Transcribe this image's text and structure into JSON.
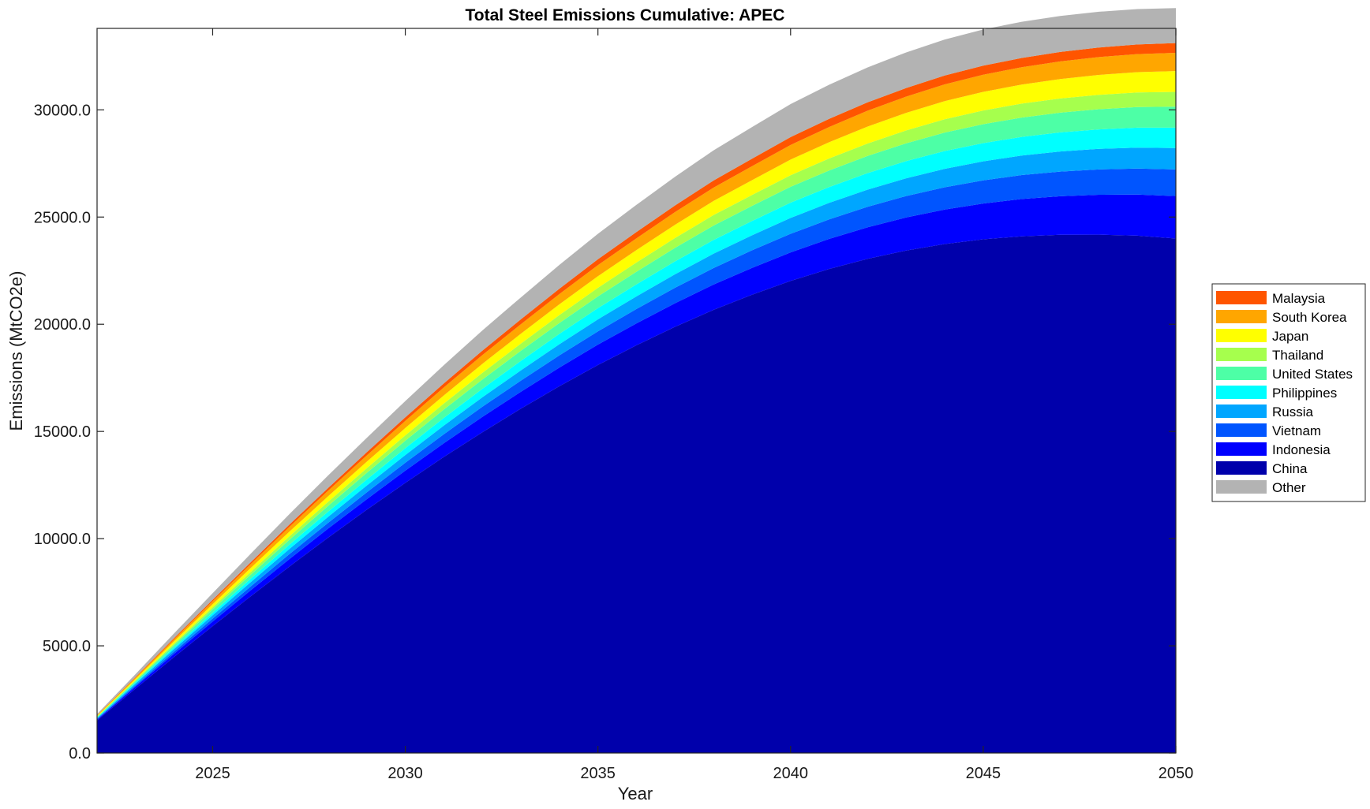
{
  "chart_data": {
    "type": "area",
    "title": "Total Steel Emissions Cumulative: APEC",
    "xlabel": "Year",
    "ylabel": "Emissions (MtCO2e)",
    "xlim": [
      2022,
      2050
    ],
    "ylim": [
      0,
      33800
    ],
    "xticks": [
      2025,
      2030,
      2035,
      2040,
      2045,
      2050
    ],
    "yticks": [
      0,
      5000,
      10000,
      15000,
      20000,
      25000,
      30000
    ],
    "ytick_labels": [
      "0.0",
      "5000.0",
      "10000.0",
      "15000.0",
      "20000.0",
      "25000.0",
      "30000.0"
    ],
    "grid": false,
    "legend_position": "right",
    "stacked": true,
    "x": [
      2022,
      2023,
      2024,
      2025,
      2026,
      2027,
      2028,
      2029,
      2030,
      2031,
      2032,
      2033,
      2034,
      2035,
      2036,
      2037,
      2038,
      2039,
      2040,
      2041,
      2042,
      2043,
      2044,
      2045,
      2046,
      2047,
      2048,
      2049,
      2050
    ],
    "series": [
      {
        "name": "China",
        "color": "#0000ab",
        "values": [
          1520,
          3010,
          4480,
          5920,
          7330,
          8710,
          10050,
          11350,
          12600,
          13810,
          14960,
          16060,
          17110,
          18100,
          19020,
          19880,
          20670,
          21380,
          22020,
          22580,
          23050,
          23440,
          23740,
          23960,
          24100,
          24170,
          24180,
          24130,
          24000
        ]
      },
      {
        "name": "Indonesia",
        "color": "#0000ff",
        "values": [
          40,
          90,
          150,
          210,
          280,
          350,
          420,
          490,
          570,
          640,
          720,
          790,
          870,
          950,
          1020,
          1100,
          1180,
          1250,
          1330,
          1400,
          1470,
          1540,
          1610,
          1670,
          1740,
          1800,
          1860,
          1920,
          1980
        ]
      },
      {
        "name": "Vietnam",
        "color": "#0055ff",
        "values": [
          30,
          60,
          100,
          140,
          180,
          230,
          270,
          320,
          370,
          420,
          470,
          520,
          570,
          620,
          670,
          720,
          770,
          820,
          870,
          910,
          960,
          1000,
          1040,
          1080,
          1120,
          1150,
          1180,
          1210,
          1240
        ]
      },
      {
        "name": "Russia",
        "color": "#00a6ff",
        "values": [
          40,
          80,
          120,
          160,
          200,
          240,
          280,
          320,
          360,
          400,
          440,
          480,
          520,
          560,
          590,
          630,
          670,
          700,
          740,
          770,
          800,
          830,
          860,
          890,
          910,
          940,
          960,
          980,
          1000
        ]
      },
      {
        "name": "Philippines",
        "color": "#00ffff",
        "values": [
          20,
          50,
          80,
          120,
          160,
          200,
          240,
          280,
          320,
          360,
          400,
          440,
          480,
          520,
          560,
          600,
          640,
          670,
          710,
          740,
          770,
          800,
          830,
          850,
          870,
          890,
          910,
          930,
          950
        ]
      },
      {
        "name": "United States",
        "color": "#4dffa6",
        "values": [
          30,
          70,
          110,
          150,
          190,
          230,
          270,
          310,
          350,
          390,
          430,
          470,
          510,
          550,
          590,
          630,
          670,
          700,
          740,
          770,
          800,
          830,
          860,
          880,
          900,
          920,
          940,
          960,
          980
        ]
      },
      {
        "name": "Thailand",
        "color": "#a6ff4d",
        "values": [
          20,
          40,
          70,
          100,
          130,
          160,
          190,
          220,
          250,
          280,
          310,
          340,
          370,
          400,
          430,
          460,
          490,
          510,
          540,
          560,
          580,
          600,
          620,
          640,
          650,
          660,
          670,
          680,
          690
        ]
      },
      {
        "name": "Japan",
        "color": "#ffff00",
        "values": [
          30,
          60,
          100,
          140,
          180,
          220,
          260,
          300,
          340,
          380,
          420,
          460,
          500,
          540,
          580,
          620,
          660,
          690,
          730,
          760,
          790,
          820,
          850,
          870,
          890,
          910,
          930,
          950,
          970
        ]
      },
      {
        "name": "South Korea",
        "color": "#ffa600",
        "values": [
          30,
          60,
          100,
          140,
          180,
          220,
          260,
          290,
          330,
          370,
          410,
          440,
          480,
          520,
          550,
          590,
          620,
          650,
          680,
          710,
          740,
          760,
          780,
          800,
          810,
          820,
          830,
          840,
          850
        ]
      },
      {
        "name": "Malaysia",
        "color": "#ff5500",
        "values": [
          10,
          30,
          50,
          70,
          90,
          110,
          130,
          150,
          170,
          190,
          210,
          230,
          250,
          270,
          290,
          310,
          330,
          350,
          370,
          380,
          390,
          400,
          410,
          420,
          430,
          440,
          445,
          450,
          455
        ]
      },
      {
        "name": "Other",
        "color": "#b3b3b3",
        "values": [
          50,
          130,
          220,
          310,
          400,
          490,
          580,
          670,
          760,
          850,
          940,
          1020,
          1110,
          1190,
          1270,
          1340,
          1410,
          1480,
          1540,
          1590,
          1630,
          1660,
          1680,
          1690,
          1690,
          1680,
          1670,
          1650,
          1630
        ]
      }
    ],
    "legend_order": [
      "Malaysia",
      "South Korea",
      "Japan",
      "Thailand",
      "United States",
      "Philippines",
      "Russia",
      "Vietnam",
      "Indonesia",
      "China",
      "Other"
    ]
  }
}
